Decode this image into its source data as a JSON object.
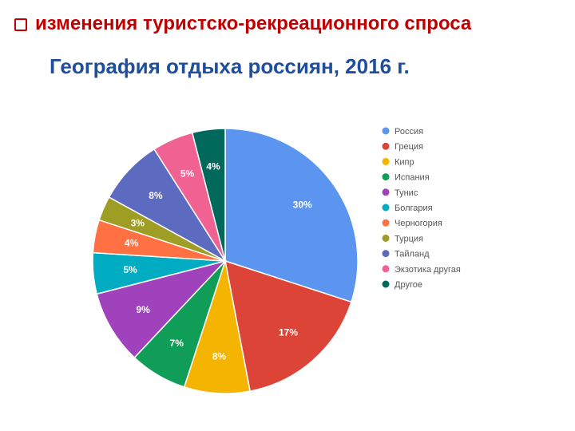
{
  "heading": {
    "text": "изменения туристско-рекреационного спроса",
    "bullet_icon": "checkbox-icon",
    "color": "#c00000"
  },
  "subtitle": {
    "text": "География отдыха россиян, 2016 г.",
    "color": "#1f4e9c"
  },
  "chart_data": {
    "type": "pie",
    "title": "",
    "legend_position": "right",
    "slices": [
      {
        "name": "Россия",
        "value": 30,
        "label": "30%",
        "color": "#5b95f0"
      },
      {
        "name": "Греция",
        "value": 17,
        "label": "17%",
        "color": "#dc4437"
      },
      {
        "name": "Кипр",
        "value": 8,
        "label": "8%",
        "color": "#f4b400"
      },
      {
        "name": "Испания",
        "value": 7,
        "label": "7%",
        "color": "#0f9d58"
      },
      {
        "name": "Тунис",
        "value": 9,
        "label": "9%",
        "color": "#a142bd"
      },
      {
        "name": "Болгария",
        "value": 5,
        "label": "5%",
        "color": "#00acc1"
      },
      {
        "name": "Черногория",
        "value": 4,
        "label": "4%",
        "color": "#ff7043"
      },
      {
        "name": "Турция",
        "value": 3,
        "label": "3%",
        "color": "#9e9d24"
      },
      {
        "name": "Тайланд",
        "value": 8,
        "label": "8%",
        "color": "#5c6bc0"
      },
      {
        "name": "Экзотика другая",
        "value": 5,
        "label": "5%",
        "color": "#f06292"
      },
      {
        "name": "Другое",
        "value": 4,
        "label": "4%",
        "color": "#00695c"
      }
    ]
  }
}
